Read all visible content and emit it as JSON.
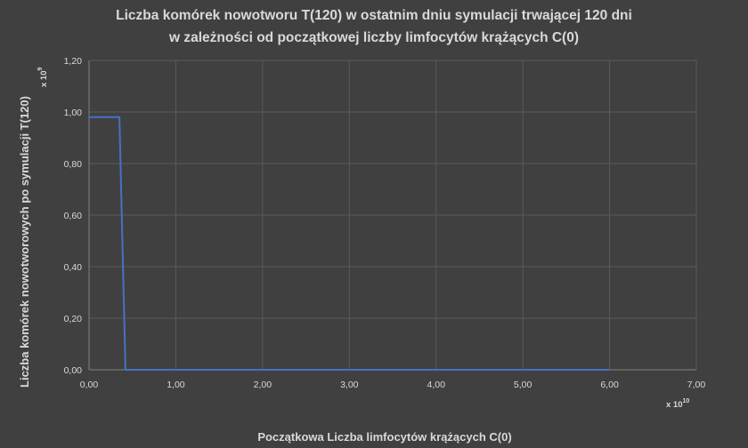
{
  "chart_data": {
    "type": "line",
    "title_lines": [
      "Liczba komórek nowotworu T(120) w ostatnim dniu symulacji trwającej 120 dni",
      "w zależności od początkowej liczby limfocytów krążących C(0)"
    ],
    "xlabel": "Początkowa Liczba limfocytów krążących C(0)",
    "ylabel": "Liczba komórek nowotworowych po symulacji T(120)",
    "x_multiplier": {
      "base": "x 10",
      "exp": "10"
    },
    "y_multiplier": {
      "base": "x 10",
      "exp": "9"
    },
    "xlim": [
      0,
      7
    ],
    "ylim": [
      0,
      1.2
    ],
    "x_ticks": [
      0,
      1,
      2,
      3,
      4,
      5,
      6,
      7
    ],
    "x_tick_labels": [
      "0,00",
      "1,00",
      "2,00",
      "3,00",
      "4,00",
      "5,00",
      "6,00",
      "7,00"
    ],
    "y_ticks": [
      0,
      0.2,
      0.4,
      0.6,
      0.8,
      1.0,
      1.2
    ],
    "y_tick_labels": [
      "0,00",
      "0,20",
      "0,40",
      "0,60",
      "0,80",
      "1,00",
      "1,20"
    ],
    "grid": true,
    "series": [
      {
        "color": "#4472c4",
        "x": [
          0.0,
          0.35,
          0.42,
          6.0
        ],
        "y": [
          0.98,
          0.98,
          0.0,
          0.0
        ]
      }
    ]
  }
}
